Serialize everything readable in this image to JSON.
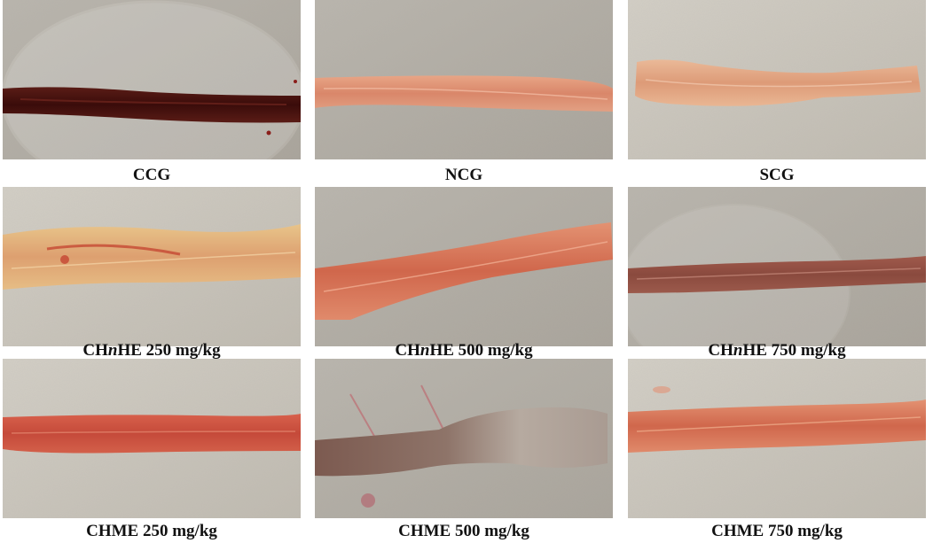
{
  "panels": [
    {
      "id": "ccg",
      "label": "CCG"
    },
    {
      "id": "ncg",
      "label": "NCG"
    },
    {
      "id": "scg",
      "label": "SCG"
    },
    {
      "id": "hne250",
      "label_pre": "CH",
      "label_it": "n",
      "label_post": "HE 250 mg/kg"
    },
    {
      "id": "hne500",
      "label_pre": "CH",
      "label_it": "n",
      "label_post": "HE 500 mg/kg"
    },
    {
      "id": "hne750",
      "label_pre": "CH",
      "label_it": "n",
      "label_post": "HE 750 mg/kg"
    },
    {
      "id": "me250",
      "label": "CHME 250 mg/kg"
    },
    {
      "id": "me500",
      "label": "CHME 500 mg/kg"
    },
    {
      "id": "me750",
      "label": "CHME 750 mg/kg"
    }
  ]
}
